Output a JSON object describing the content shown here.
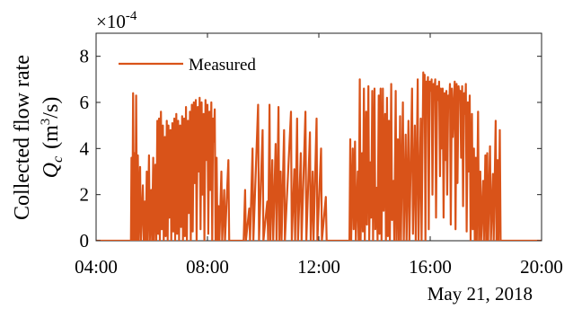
{
  "chart_data": {
    "type": "line",
    "title": "",
    "ylabel_line1": "Collected flow rate",
    "ylabel_sym": "Q",
    "ylabel_sub": "c",
    "ylabel_units_open": "(m",
    "ylabel_units_sup": "3",
    "ylabel_units_close": "/s)",
    "y_multiplier_base": "×10",
    "y_multiplier_exp": "-4",
    "date_label": "May 21, 2018",
    "legend_position": "top-left",
    "grid": false,
    "xlim_hours": [
      4,
      20
    ],
    "ylim": [
      0,
      9
    ],
    "x_ticks": [
      {
        "label": "04:00",
        "hour": 4
      },
      {
        "label": "08:00",
        "hour": 8
      },
      {
        "label": "12:00",
        "hour": 12
      },
      {
        "label": "16:00",
        "hour": 16
      },
      {
        "label": "20:00",
        "hour": 20
      }
    ],
    "y_ticks": [
      {
        "label": "0",
        "value": 0
      },
      {
        "label": "2",
        "value": 2
      },
      {
        "label": "4",
        "value": 4
      },
      {
        "label": "6",
        "value": 6
      },
      {
        "label": "8",
        "value": 8
      }
    ],
    "series": [
      {
        "name": "Measured",
        "color": "#d95319",
        "x_unit": "hour of day",
        "y_unit": "1e-4 m^3/s",
        "points": [
          [
            4.0,
            0
          ],
          [
            5.25,
            0
          ],
          [
            5.27,
            3.6
          ],
          [
            5.3,
            0
          ],
          [
            5.33,
            6.4
          ],
          [
            5.36,
            0
          ],
          [
            5.38,
            3.8
          ],
          [
            5.41,
            0
          ],
          [
            5.44,
            6.3
          ],
          [
            5.47,
            0
          ],
          [
            5.5,
            3.7
          ],
          [
            5.53,
            0
          ],
          [
            5.58,
            3.2
          ],
          [
            5.61,
            0
          ],
          [
            5.68,
            2.4
          ],
          [
            5.71,
            0
          ],
          [
            5.75,
            1.7
          ],
          [
            5.78,
            0
          ],
          [
            5.82,
            3.0
          ],
          [
            5.85,
            0
          ],
          [
            5.9,
            3.7
          ],
          [
            5.93,
            0
          ],
          [
            5.98,
            2.2
          ],
          [
            6.01,
            0
          ],
          [
            6.05,
            3.6
          ],
          [
            6.08,
            0
          ],
          [
            6.13,
            3.3
          ],
          [
            6.16,
            0
          ],
          [
            6.2,
            5.2
          ],
          [
            6.23,
            0.3
          ],
          [
            6.26,
            5.3
          ],
          [
            6.29,
            0
          ],
          [
            6.33,
            5.6
          ],
          [
            6.36,
            0.5
          ],
          [
            6.4,
            5.0
          ],
          [
            6.43,
            0
          ],
          [
            6.47,
            4.5
          ],
          [
            6.5,
            0.2
          ],
          [
            6.54,
            5.2
          ],
          [
            6.57,
            0
          ],
          [
            6.6,
            5.0
          ],
          [
            6.63,
            1.0
          ],
          [
            6.67,
            4.8
          ],
          [
            6.7,
            0
          ],
          [
            6.74,
            5.1
          ],
          [
            6.77,
            0.4
          ],
          [
            6.81,
            5.3
          ],
          [
            6.84,
            0
          ],
          [
            6.88,
            5.5
          ],
          [
            6.91,
            0.3
          ],
          [
            6.95,
            5.2
          ],
          [
            6.98,
            0
          ],
          [
            7.02,
            5.0
          ],
          [
            7.05,
            0.6
          ],
          [
            7.09,
            5.4
          ],
          [
            7.12,
            0
          ],
          [
            7.16,
            5.3
          ],
          [
            7.19,
            0.2
          ],
          [
            7.23,
            5.8
          ],
          [
            7.26,
            0
          ],
          [
            7.3,
            5.2
          ],
          [
            7.33,
            1.2
          ],
          [
            7.37,
            5.6
          ],
          [
            7.4,
            0
          ],
          [
            7.44,
            5.9
          ],
          [
            7.47,
            0.4
          ],
          [
            7.51,
            6.0
          ],
          [
            7.54,
            2.5
          ],
          [
            7.58,
            6.1
          ],
          [
            7.61,
            0
          ],
          [
            7.65,
            5.8
          ],
          [
            7.68,
            3.0
          ],
          [
            7.72,
            6.2
          ],
          [
            7.75,
            0.5
          ],
          [
            7.79,
            6.0
          ],
          [
            7.82,
            2.0
          ],
          [
            7.86,
            5.5
          ],
          [
            7.89,
            0
          ],
          [
            7.93,
            6.1
          ],
          [
            7.96,
            3.5
          ],
          [
            8.0,
            5.9
          ],
          [
            8.03,
            0.3
          ],
          [
            8.07,
            5.6
          ],
          [
            8.1,
            2.2
          ],
          [
            8.14,
            6.0
          ],
          [
            8.17,
            0
          ],
          [
            8.2,
            5.3
          ],
          [
            8.23,
            4.3
          ],
          [
            8.26,
            5.7
          ],
          [
            8.29,
            0
          ],
          [
            8.33,
            3.6
          ],
          [
            8.36,
            0
          ],
          [
            8.4,
            1.5
          ],
          [
            8.43,
            0
          ],
          [
            8.5,
            3.0
          ],
          [
            8.53,
            0
          ],
          [
            8.6,
            2.2
          ],
          [
            8.63,
            0
          ],
          [
            8.75,
            3.5
          ],
          [
            8.78,
            0
          ],
          [
            9.3,
            0
          ],
          [
            9.35,
            2.2
          ],
          [
            9.38,
            0
          ],
          [
            9.5,
            1.4
          ],
          [
            9.53,
            0
          ],
          [
            9.62,
            4.0
          ],
          [
            9.65,
            0
          ],
          [
            9.82,
            5.9
          ],
          [
            9.85,
            0
          ],
          [
            9.98,
            4.8
          ],
          [
            10.01,
            0
          ],
          [
            10.15,
            1.7
          ],
          [
            10.18,
            0
          ],
          [
            10.23,
            5.9
          ],
          [
            10.26,
            0
          ],
          [
            10.33,
            3.5
          ],
          [
            10.36,
            0
          ],
          [
            10.45,
            4.2
          ],
          [
            10.48,
            0
          ],
          [
            10.55,
            5.8
          ],
          [
            10.58,
            0
          ],
          [
            10.63,
            3.0
          ],
          [
            10.66,
            0
          ],
          [
            10.75,
            4.8
          ],
          [
            10.78,
            0
          ],
          [
            11.0,
            5.6
          ],
          [
            11.03,
            0
          ],
          [
            11.12,
            3.1
          ],
          [
            11.15,
            0
          ],
          [
            11.22,
            5.3
          ],
          [
            11.25,
            0
          ],
          [
            11.35,
            3.8
          ],
          [
            11.38,
            0
          ],
          [
            11.52,
            5.6
          ],
          [
            11.55,
            0
          ],
          [
            11.68,
            4.7
          ],
          [
            11.71,
            0
          ],
          [
            11.78,
            3.0
          ],
          [
            11.81,
            0
          ],
          [
            11.92,
            5.3
          ],
          [
            11.95,
            0
          ],
          [
            12.08,
            4.0
          ],
          [
            12.11,
            0
          ],
          [
            12.25,
            1.9
          ],
          [
            12.28,
            0
          ],
          [
            12.55,
            0
          ],
          [
            13.1,
            0
          ],
          [
            13.13,
            4.4
          ],
          [
            13.16,
            0
          ],
          [
            13.22,
            4.0
          ],
          [
            13.25,
            0.5
          ],
          [
            13.3,
            4.3
          ],
          [
            13.33,
            0
          ],
          [
            13.4,
            3.0
          ],
          [
            13.43,
            0
          ],
          [
            13.47,
            7.0
          ],
          [
            13.5,
            0
          ],
          [
            13.55,
            3.8
          ],
          [
            13.58,
            0.4
          ],
          [
            13.62,
            6.6
          ],
          [
            13.65,
            0
          ],
          [
            13.7,
            5.6
          ],
          [
            13.73,
            0.7
          ],
          [
            13.78,
            6.7
          ],
          [
            13.81,
            0
          ],
          [
            13.85,
            3.4
          ],
          [
            13.88,
            1.0
          ],
          [
            13.92,
            6.5
          ],
          [
            13.95,
            0
          ],
          [
            14.0,
            6.6
          ],
          [
            14.03,
            0.5
          ],
          [
            14.08,
            2.3
          ],
          [
            14.11,
            0
          ],
          [
            14.15,
            6.3
          ],
          [
            14.18,
            0.3
          ],
          [
            14.22,
            6.6
          ],
          [
            14.25,
            0
          ],
          [
            14.3,
            6.6
          ],
          [
            14.33,
            1.3
          ],
          [
            14.38,
            5.5
          ],
          [
            14.41,
            0
          ],
          [
            14.45,
            6.2
          ],
          [
            14.48,
            0.2
          ],
          [
            14.52,
            5.2
          ],
          [
            14.55,
            0
          ],
          [
            14.6,
            6.8
          ],
          [
            14.63,
            0.9
          ],
          [
            14.68,
            2.6
          ],
          [
            14.71,
            0
          ],
          [
            14.76,
            6.5
          ],
          [
            14.79,
            0
          ],
          [
            14.84,
            4.4
          ],
          [
            14.87,
            0
          ],
          [
            14.92,
            5.4
          ],
          [
            14.95,
            0
          ],
          [
            15.02,
            6.0
          ],
          [
            15.05,
            0
          ],
          [
            15.12,
            4.6
          ],
          [
            15.15,
            0
          ],
          [
            15.22,
            5.2
          ],
          [
            15.25,
            0
          ],
          [
            15.35,
            6.6
          ],
          [
            15.38,
            0.3
          ],
          [
            15.45,
            5.0
          ],
          [
            15.48,
            0
          ],
          [
            15.55,
            7.0
          ],
          [
            15.58,
            0
          ],
          [
            15.66,
            5.3
          ],
          [
            15.69,
            0
          ],
          [
            15.75,
            7.3
          ],
          [
            15.77,
            6.0
          ],
          [
            15.8,
            7.2
          ],
          [
            15.83,
            0
          ],
          [
            15.86,
            6.9
          ],
          [
            15.88,
            6.2
          ],
          [
            15.92,
            7.1
          ],
          [
            15.95,
            0.5
          ],
          [
            15.98,
            6.9
          ],
          [
            16.01,
            6.5
          ],
          [
            16.05,
            7.0
          ],
          [
            16.08,
            2.0
          ],
          [
            16.12,
            6.8
          ],
          [
            16.15,
            6.3
          ],
          [
            16.18,
            7.0
          ],
          [
            16.21,
            1.0
          ],
          [
            16.25,
            6.7
          ],
          [
            16.28,
            6.1
          ],
          [
            16.32,
            6.9
          ],
          [
            16.35,
            2.8
          ],
          [
            16.38,
            6.6
          ],
          [
            16.41,
            4.0
          ],
          [
            16.45,
            6.6
          ],
          [
            16.48,
            1.0
          ],
          [
            16.52,
            6.4
          ],
          [
            16.55,
            3.5
          ],
          [
            16.58,
            6.5
          ],
          [
            16.61,
            2.0
          ],
          [
            16.65,
            6.3
          ],
          [
            16.68,
            5.8
          ],
          [
            16.71,
            6.8
          ],
          [
            16.74,
            0.7
          ],
          [
            16.78,
            6.6
          ],
          [
            16.81,
            4.5
          ],
          [
            16.85,
            6.0
          ],
          [
            16.88,
            6.9
          ],
          [
            16.91,
            0.5
          ],
          [
            16.95,
            6.8
          ],
          [
            16.98,
            2.5
          ],
          [
            17.02,
            6.7
          ],
          [
            17.05,
            6.2
          ],
          [
            17.08,
            6.5
          ],
          [
            17.11,
            3.6
          ],
          [
            17.15,
            6.7
          ],
          [
            17.18,
            1.5
          ],
          [
            17.22,
            6.4
          ],
          [
            17.25,
            5.5
          ],
          [
            17.28,
            6.8
          ],
          [
            17.31,
            0.4
          ],
          [
            17.35,
            6.0
          ],
          [
            17.38,
            3.0
          ],
          [
            17.42,
            6.3
          ],
          [
            17.45,
            0
          ],
          [
            17.5,
            5.5
          ],
          [
            17.53,
            0.5
          ],
          [
            17.57,
            4.0
          ],
          [
            17.6,
            0
          ],
          [
            17.64,
            3.6
          ],
          [
            17.67,
            0
          ],
          [
            17.72,
            5.6
          ],
          [
            17.75,
            0
          ],
          [
            17.8,
            3.0
          ],
          [
            17.83,
            0
          ],
          [
            17.9,
            2.6
          ],
          [
            17.93,
            0
          ],
          [
            17.98,
            3.7
          ],
          [
            18.01,
            0
          ],
          [
            18.05,
            3.8
          ],
          [
            18.08,
            0
          ],
          [
            18.15,
            4.1
          ],
          [
            18.18,
            0
          ],
          [
            18.25,
            2.9
          ],
          [
            18.28,
            0
          ],
          [
            18.35,
            5.2
          ],
          [
            18.38,
            0
          ],
          [
            18.42,
            3.5
          ],
          [
            18.45,
            0
          ],
          [
            18.5,
            4.8
          ],
          [
            18.53,
            0
          ],
          [
            18.55,
            0
          ],
          [
            20.0,
            0
          ]
        ]
      }
    ]
  }
}
